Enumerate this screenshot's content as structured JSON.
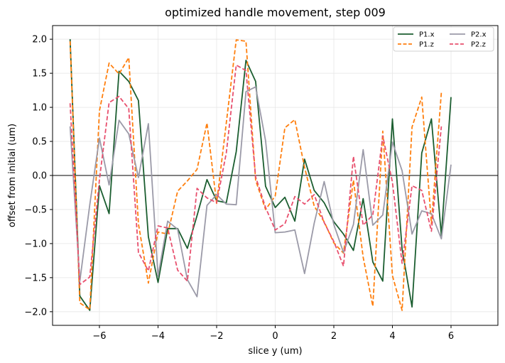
{
  "chart_data": {
    "type": "line",
    "title": "optimized handle movement, step 009",
    "xlabel": "slice y (um)",
    "ylabel": "offset from initial (um)",
    "xlim": [
      -7.6,
      7.6
    ],
    "ylim": [
      -2.2,
      2.2
    ],
    "xticks": [
      -6,
      -4,
      -2,
      0,
      2,
      4,
      6
    ],
    "xtick_labels": [
      "−6",
      "−4",
      "−2",
      "0",
      "2",
      "4",
      "6"
    ],
    "yticks": [
      -2.0,
      -1.5,
      -1.0,
      -0.5,
      0.0,
      0.5,
      1.0,
      1.5,
      2.0
    ],
    "ytick_labels": [
      "−2.0",
      "−1.5",
      "−1.0",
      "−0.5",
      "0.0",
      "0.5",
      "1.0",
      "1.5",
      "2.0"
    ],
    "grid": true,
    "hline_y": 0,
    "legend_position": "top-right",
    "x": [
      -7.0,
      -6.67,
      -6.33,
      -6.0,
      -5.67,
      -5.33,
      -5.0,
      -4.67,
      -4.33,
      -4.0,
      -3.67,
      -3.33,
      -3.0,
      -2.67,
      -2.33,
      -2.0,
      -1.67,
      -1.33,
      -1.0,
      -0.67,
      -0.33,
      0.0,
      0.33,
      0.67,
      1.0,
      1.33,
      1.67,
      2.0,
      2.33,
      2.67,
      3.0,
      3.33,
      3.67,
      4.0,
      4.33,
      4.67,
      5.0,
      5.33,
      5.67,
      6.0,
      6.33,
      6.67,
      7.0
    ],
    "series": [
      {
        "name": "P1.x",
        "color": "#1b5e30",
        "dash": "solid",
        "values": [
          2.0,
          -1.77,
          -1.98,
          -0.15,
          -0.56,
          1.53,
          1.38,
          1.1,
          -0.9,
          -1.57,
          -0.78,
          -0.78,
          -1.07,
          -0.59,
          -0.06,
          -0.37,
          -0.4,
          0.35,
          1.69,
          1.38,
          -0.16,
          -0.47,
          -0.32,
          -0.67,
          0.24,
          -0.22,
          -0.4,
          -0.68,
          -0.86,
          -1.1,
          -0.34,
          -1.27,
          -1.55,
          0.83,
          -1.08,
          -1.93,
          0.33,
          0.83,
          -0.88,
          1.15,
          null,
          null,
          null
        ]
      },
      {
        "name": "P1.z",
        "color": "#ff7f0e",
        "dash": "dashed",
        "values": [
          1.97,
          -1.87,
          -1.97,
          0.95,
          1.65,
          1.49,
          1.73,
          -0.71,
          -1.58,
          -0.83,
          -0.86,
          -0.23,
          -0.08,
          0.09,
          0.77,
          -0.41,
          0.77,
          1.99,
          1.97,
          -0.07,
          -0.5,
          -0.3,
          0.7,
          0.82,
          0.12,
          -0.45,
          -0.68,
          -0.99,
          -1.14,
          -0.07,
          -1.2,
          -1.92,
          0.65,
          -1.47,
          -1.98,
          0.71,
          1.15,
          -0.71,
          1.22,
          null,
          null,
          null,
          null
        ]
      },
      {
        "name": "P2.x",
        "color": "#9b9aa8",
        "dash": "solid",
        "values": [
          0.72,
          -1.55,
          -0.43,
          0.55,
          -0.14,
          0.81,
          0.61,
          -0.03,
          0.76,
          -1.48,
          -0.67,
          -0.79,
          -1.53,
          -1.78,
          -0.44,
          -0.28,
          -0.42,
          -0.43,
          1.23,
          1.3,
          0.51,
          -0.84,
          -0.83,
          -0.8,
          -1.44,
          -0.7,
          -0.09,
          -0.72,
          -1.13,
          -0.72,
          0.38,
          -0.73,
          -0.58,
          0.49,
          0.07,
          -0.86,
          -0.52,
          -0.56,
          -0.93,
          0.16,
          null,
          null,
          null
        ]
      },
      {
        "name": "P2.z",
        "color": "#e8506e",
        "dash": "dashed",
        "values": [
          1.06,
          -1.6,
          -1.49,
          -0.06,
          1.07,
          1.16,
          0.98,
          -1.13,
          -1.4,
          -0.74,
          -0.77,
          -1.39,
          -1.55,
          -0.19,
          -0.33,
          -0.4,
          0.33,
          1.62,
          1.54,
          -0.02,
          -0.47,
          -0.8,
          -0.71,
          -0.31,
          -0.42,
          -0.28,
          -0.69,
          -0.97,
          -1.33,
          0.28,
          -0.73,
          -0.58,
          0.58,
          -0.1,
          -1.29,
          -0.15,
          -0.22,
          -0.82,
          0.72,
          null,
          null,
          null,
          null
        ]
      }
    ]
  }
}
